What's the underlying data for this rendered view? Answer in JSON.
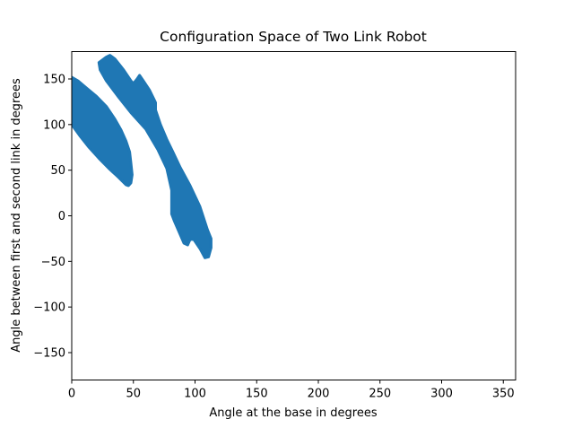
{
  "chart_data": {
    "type": "scatter",
    "title": "Configuration Space of Two Link Robot",
    "xlabel": "Angle at the base in degrees",
    "ylabel": "Angle between first and second link in degrees",
    "xlim": [
      0,
      360
    ],
    "ylim": [
      -180,
      180
    ],
    "xticks": [
      0,
      50,
      100,
      150,
      200,
      250,
      300,
      350
    ],
    "yticks": [
      -150,
      -100,
      -50,
      0,
      50,
      100,
      150
    ],
    "grid": false,
    "legend": "none",
    "series": [
      {
        "color": "#1f77b4",
        "regions": [
          {
            "outline": [
              [
                0,
                152
              ],
              [
                5,
                148
              ],
              [
                12,
                140
              ],
              [
                20,
                131
              ],
              [
                28,
                120
              ],
              [
                35,
                106
              ],
              [
                40,
                94
              ],
              [
                44,
                82
              ],
              [
                47,
                70
              ],
              [
                48,
                58
              ],
              [
                49,
                45
              ],
              [
                48,
                36
              ],
              [
                46,
                33
              ],
              [
                44,
                34
              ],
              [
                38,
                42
              ],
              [
                30,
                52
              ],
              [
                22,
                63
              ],
              [
                14,
                75
              ],
              [
                7,
                87
              ],
              [
                0,
                100
              ]
            ]
          },
          {
            "outline": [
              [
                22,
                168
              ],
              [
                28,
                174
              ],
              [
                31,
                176
              ],
              [
                35,
                172
              ],
              [
                42,
                160
              ],
              [
                48,
                148
              ],
              [
                50,
                145
              ],
              [
                53,
                150
              ],
              [
                55,
                154
              ],
              [
                58,
                148
              ],
              [
                63,
                138
              ],
              [
                67,
                127
              ],
              [
                68,
                124
              ],
              [
                68,
                116
              ],
              [
                72,
                100
              ],
              [
                77,
                84
              ],
              [
                82,
                70
              ],
              [
                88,
                53
              ],
              [
                96,
                33
              ],
              [
                104,
                10
              ],
              [
                110,
                -15
              ],
              [
                113,
                -25
              ],
              [
                113,
                -35
              ],
              [
                111,
                -45
              ],
              [
                108,
                -46
              ],
              [
                104,
                -36
              ],
              [
                99,
                -26
              ],
              [
                96,
                -26
              ],
              [
                94,
                -32
              ],
              [
                91,
                -30
              ],
              [
                83,
                -5
              ],
              [
                81,
                2
              ],
              [
                81,
                28
              ],
              [
                77,
                52
              ],
              [
                70,
                72
              ],
              [
                60,
                95
              ],
              [
                48,
                113
              ],
              [
                38,
                130
              ],
              [
                28,
                148
              ],
              [
                23,
                160
              ]
            ]
          }
        ]
      }
    ]
  }
}
